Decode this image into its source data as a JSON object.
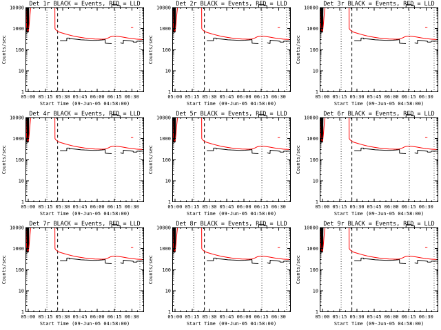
{
  "window": {
    "background_color": "#ffffff",
    "description_colors": {
      "events": "#000000",
      "lld": "#ff0000",
      "frame": "#000000"
    }
  },
  "chart_data": {
    "type": "line",
    "layout": "3x3-small-multiples",
    "y_scale": "log",
    "grid": "off",
    "legend": "in-title",
    "xlabel": "Start Time (09-Jun-05 04:58:00)",
    "ylabel": "Counts/sec",
    "x_tick_labels": [
      "05:00",
      "05:15",
      "05:30",
      "05:45",
      "06:00",
      "06:15",
      "06:30"
    ],
    "y_tick_labels": [
      "1",
      "10",
      "100",
      "1000",
      "10000"
    ],
    "y_tick_values": [
      1,
      10,
      100,
      1000,
      10000
    ],
    "ylim": [
      1,
      10000
    ],
    "x_range_minutes_after_0458": [
      0,
      102.3
    ],
    "x_major_ticks_min": [
      2,
      17,
      32,
      47,
      62,
      77,
      92
    ],
    "x_minor_step_min": 5,
    "panels": [
      {
        "title": "Det 1r BLACK = Events, RED = LLD",
        "detector": "Det 1r"
      },
      {
        "title": "Det 2r BLACK = Events, RED = LLD",
        "detector": "Det 2r"
      },
      {
        "title": "Det 3r BLACK = Events, RED = LLD",
        "detector": "Det 3r"
      },
      {
        "title": "Det 4r BLACK = Events, RED = LLD",
        "detector": "Det 4r"
      },
      {
        "title": "Det 5r BLACK = Events, RED = LLD",
        "detector": "Det 5r"
      },
      {
        "title": "Det 6r BLACK = Events, RED = LLD",
        "detector": "Det 6r"
      },
      {
        "title": "Det 7r BLACK = Events, RED = LLD",
        "detector": "Det 7r"
      },
      {
        "title": "Det 8r BLACK = Events, RED = LLD",
        "detector": "Det 8r"
      },
      {
        "title": "Det 9r BLACK = Events, RED = LLD",
        "detector": "Det 9r"
      }
    ],
    "shared_series_note_units": {
      "x": "minutes after 04:58",
      "y": "counts/sec"
    },
    "markers": {
      "dotted_vertical_min": [
        18.3,
        77.5,
        99.0
      ],
      "dashed_vertical_min": [
        27.6
      ]
    },
    "series": [
      {
        "name": "LLD",
        "color": "#ff0000",
        "segments": [
          [
            [
              0.15,
              9000
            ],
            [
              0.4,
              2200
            ],
            [
              0.8,
              1100
            ],
            [
              1.4,
              820
            ],
            [
              1.9,
              760
            ],
            [
              2.4,
              900
            ],
            [
              2.9,
              1600
            ],
            [
              3.4,
              3500
            ],
            [
              3.9,
              6500
            ],
            [
              4.3,
              10000
            ],
            [
              25.2,
              10000
            ],
            [
              25.3,
              1020
            ],
            [
              25.7,
              930
            ],
            [
              26.5,
              830
            ],
            [
              28,
              720
            ],
            [
              30,
              655
            ],
            [
              33,
              585
            ],
            [
              36,
              525
            ],
            [
              39,
              475
            ],
            [
              42,
              435
            ],
            [
              45,
              405
            ],
            [
              48,
              380
            ],
            [
              51,
              358
            ],
            [
              54,
              343
            ],
            [
              57,
              331
            ],
            [
              60,
              322
            ],
            [
              63,
              317
            ],
            [
              65,
              315
            ],
            [
              67,
              316
            ],
            [
              68.5,
              320
            ],
            [
              70,
              331
            ],
            [
              71,
              350
            ],
            [
              72,
              372
            ],
            [
              73,
              396
            ],
            [
              74,
              418
            ],
            [
              75,
              430
            ],
            [
              76,
              436
            ],
            [
              77,
              438
            ],
            [
              78,
              436
            ],
            [
              80,
              428
            ],
            [
              82,
              415
            ],
            [
              84,
              398
            ],
            [
              86,
              380
            ],
            [
              88,
              363
            ],
            [
              90,
              348
            ],
            [
              92,
              336
            ],
            [
              94,
              327
            ],
            [
              96,
              319
            ],
            [
              98,
              313
            ],
            [
              100,
              308
            ],
            [
              102.2,
              303
            ]
          ],
          [
            [
              91.2,
              1150
            ],
            [
              93.2,
              1150
            ]
          ]
        ]
      },
      {
        "name": "Events",
        "color": "#000000",
        "segments": [
          [
            [
              0.05,
              750
            ],
            [
              0.15,
              9500
            ],
            [
              0.3,
              680
            ],
            [
              0.5,
              9700
            ],
            [
              0.7,
              660
            ],
            [
              0.9,
              9800
            ],
            [
              1.1,
              670
            ],
            [
              1.3,
              9800
            ],
            [
              1.5,
              660
            ],
            [
              1.7,
              9700
            ],
            [
              1.9,
              680
            ],
            [
              2.1,
              9800
            ],
            [
              2.3,
              700
            ],
            [
              2.6,
              9800
            ],
            [
              3.0,
              9900
            ],
            [
              3.5,
              10000
            ],
            [
              29.5,
              10000
            ]
          ],
          [
            [
              29.7,
              265
            ],
            [
              35.5,
              265
            ],
            [
              35.6,
              355
            ],
            [
              37.8,
              355
            ],
            [
              37.9,
              320
            ],
            [
              39,
              330
            ],
            [
              42,
              320
            ],
            [
              45,
              308
            ],
            [
              48,
              296
            ],
            [
              51,
              288
            ],
            [
              54,
              283
            ],
            [
              57,
              279
            ],
            [
              60,
              277
            ],
            [
              63,
              280
            ],
            [
              66,
              288
            ],
            [
              68,
              297
            ],
            [
              68.9,
              304
            ],
            [
              69.0,
              205
            ],
            [
              70,
              200
            ],
            [
              72,
              196
            ],
            [
              74.5,
              193
            ]
          ],
          [
            [
              74.6,
              10000
            ],
            [
              74.7,
              13800
            ],
            [
              79.3,
              13800
            ],
            [
              79.4,
              12300
            ],
            [
              81.8,
              12300
            ],
            [
              81.9,
              10000
            ]
          ],
          [
            [
              82.1,
              215
            ],
            [
              83,
              205
            ],
            [
              84.6,
              196
            ],
            [
              84.7,
              282
            ],
            [
              86,
              279
            ],
            [
              88,
              271
            ],
            [
              90,
              263
            ],
            [
              92,
              256
            ],
            [
              93.2,
              252
            ],
            [
              93.3,
              230
            ],
            [
              95,
              228
            ],
            [
              96.4,
              230
            ],
            [
              96.5,
              250
            ],
            [
              98,
              254
            ],
            [
              100,
              257
            ],
            [
              102.2,
              250
            ]
          ]
        ]
      }
    ]
  }
}
